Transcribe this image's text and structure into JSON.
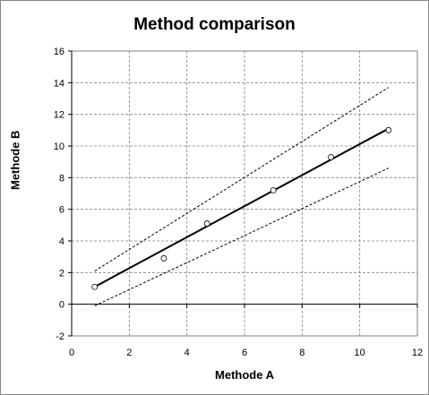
{
  "chart_data": {
    "type": "scatter",
    "title": "Method comparison",
    "xlabel": "Methode A",
    "ylabel": "Methode B",
    "xlim": [
      0,
      12
    ],
    "ylim": [
      -2,
      16
    ],
    "xticks": [
      0,
      2,
      4,
      6,
      8,
      10,
      12
    ],
    "yticks": [
      -2,
      0,
      2,
      4,
      6,
      8,
      10,
      12,
      14,
      16
    ],
    "grid": true,
    "grid_style": "dashed",
    "points": [
      {
        "x": 0.8,
        "y": 1.1
      },
      {
        "x": 3.2,
        "y": 2.9
      },
      {
        "x": 4.7,
        "y": 5.1
      },
      {
        "x": 7.0,
        "y": 7.2
      },
      {
        "x": 9.0,
        "y": 9.3
      },
      {
        "x": 11.0,
        "y": 11.0
      }
    ],
    "regression_line": {
      "x": [
        0.8,
        11.0
      ],
      "y": [
        1.1,
        11.1
      ]
    },
    "upper_band": {
      "x": [
        0.8,
        11.0
      ],
      "y": [
        2.1,
        13.7
      ]
    },
    "lower_band": {
      "x": [
        0.8,
        11.0
      ],
      "y": [
        -0.1,
        8.6
      ]
    },
    "colors": {
      "line": "#000000",
      "grid": "#808080",
      "points": "#000000"
    }
  }
}
